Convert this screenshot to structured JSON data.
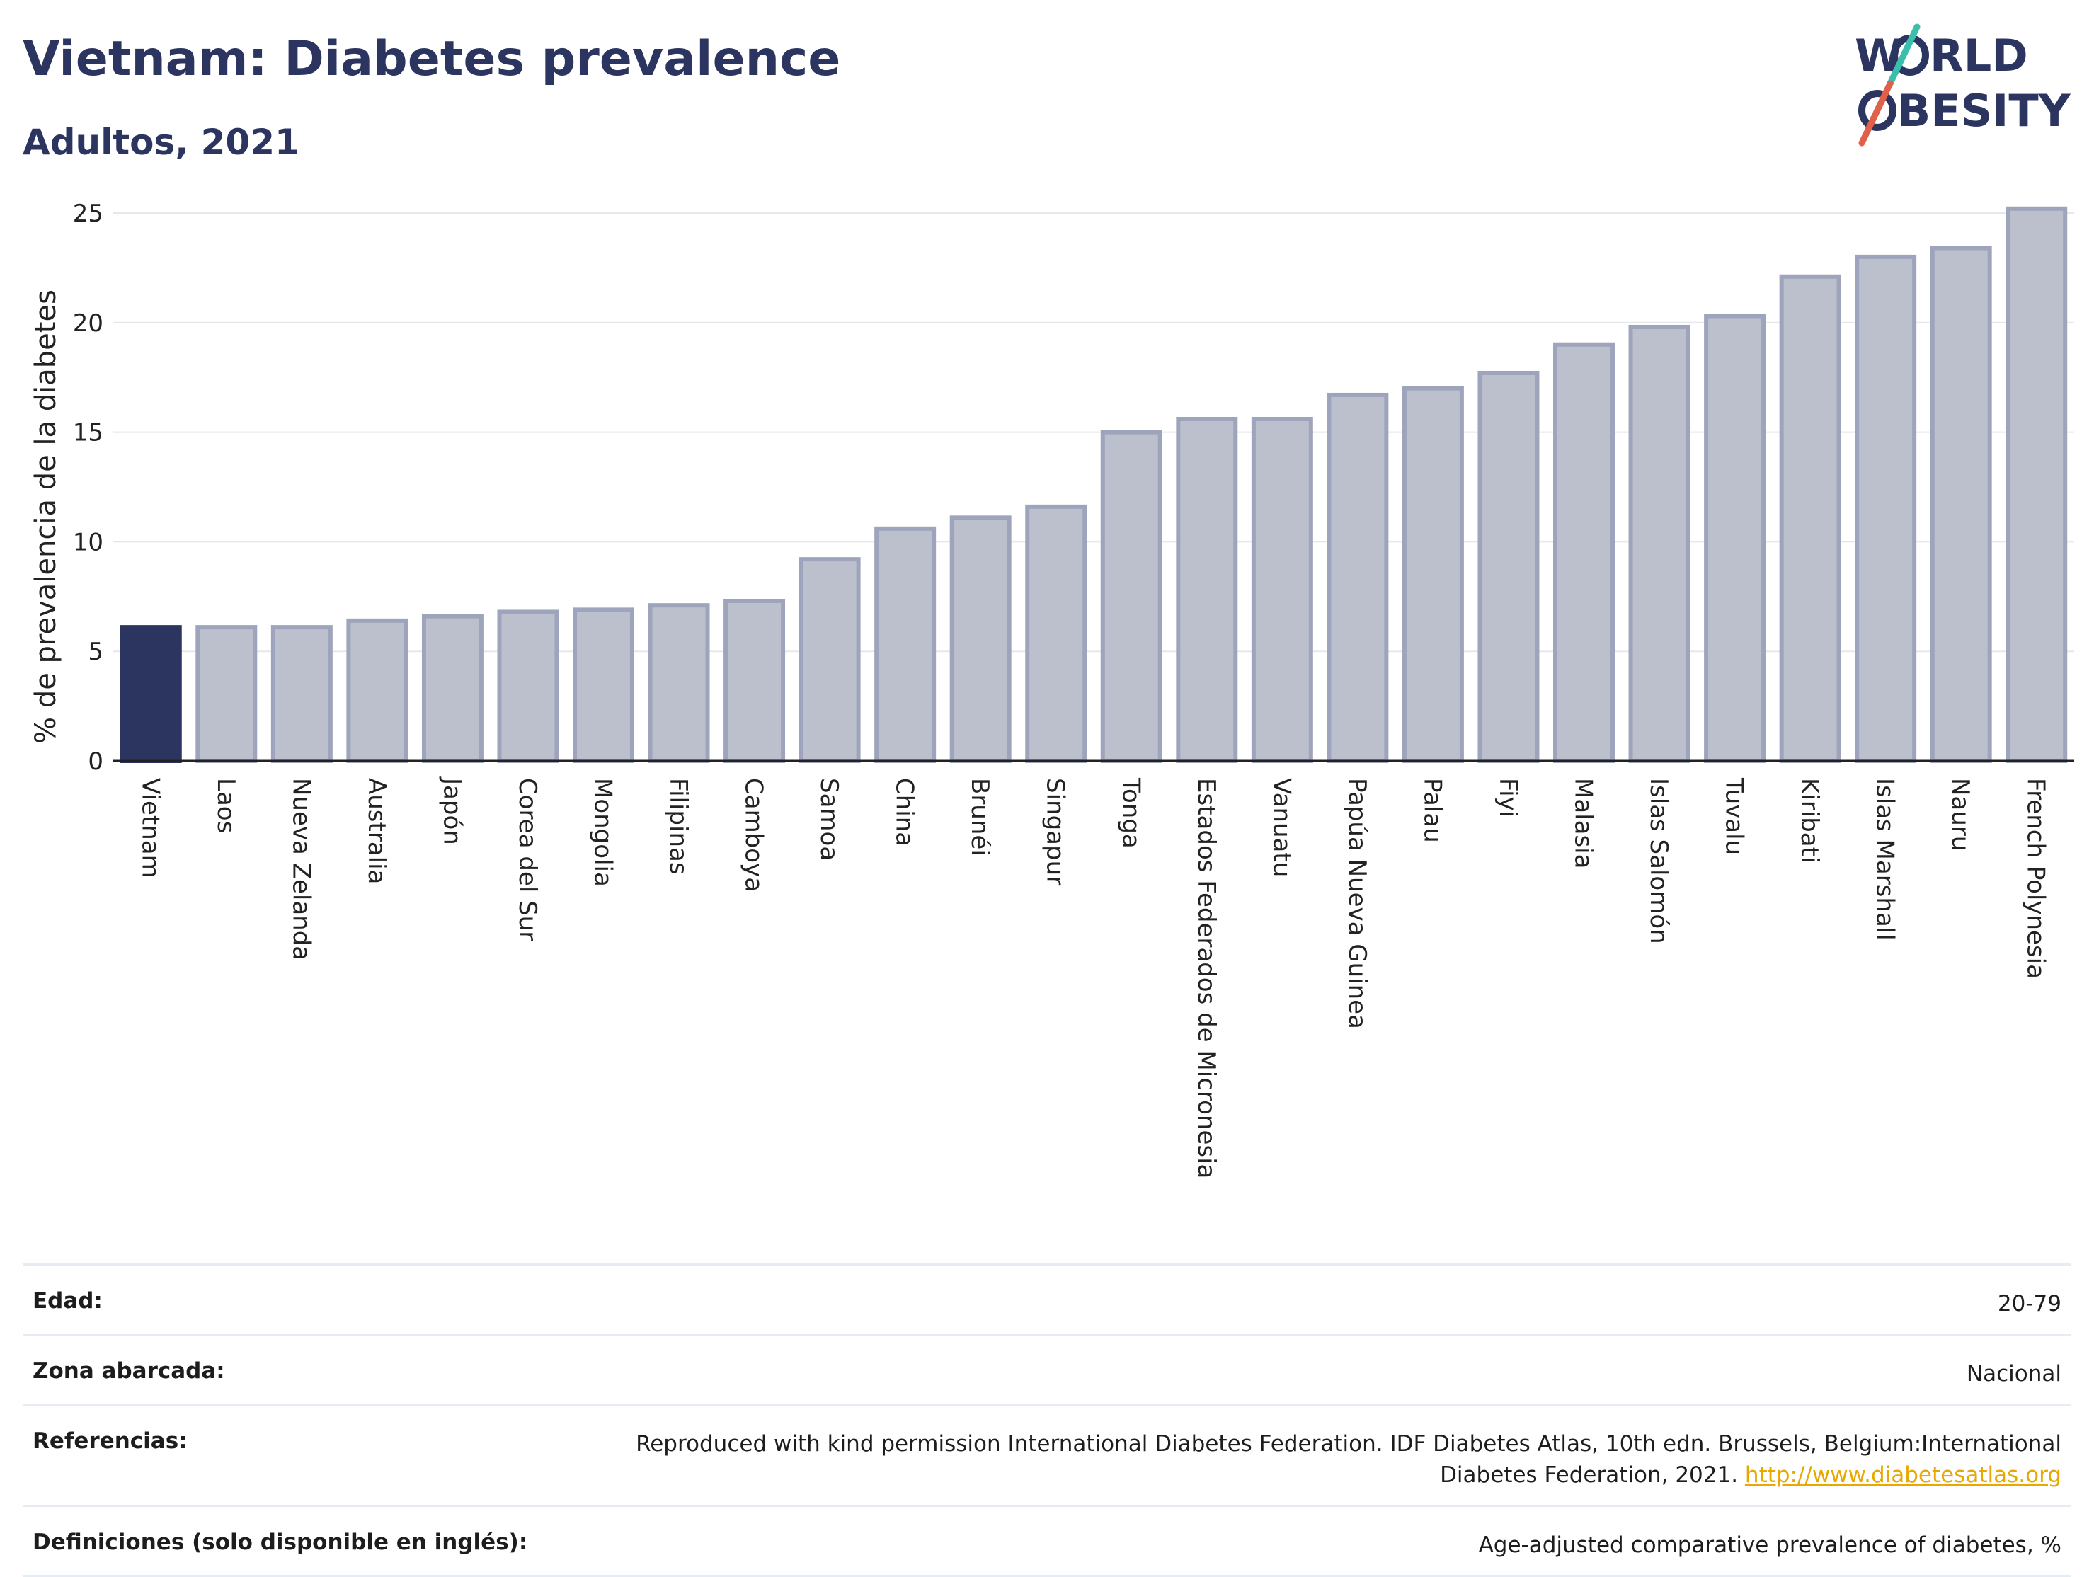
{
  "header": {
    "title": "Vietnam: Diabetes prevalence",
    "subtitle": "Adultos, 2021"
  },
  "logo": {
    "line1_a": "W",
    "line1_b": "RLD",
    "line2_b": "BESITY",
    "slash_color_top": "#3bbfad",
    "slash_color_bottom": "#e0604a"
  },
  "chart_data": {
    "type": "bar",
    "ylabel": "% de prevalencia de la diabetes",
    "ylim": [
      0,
      26
    ],
    "yticks": [
      0,
      5,
      10,
      15,
      20,
      25
    ],
    "grid": true,
    "highlight": "Vietnam",
    "highlight_color": "#2b3560",
    "bar_color": "#bcc0cd",
    "bar_edge_color": "#9ea4bb",
    "categories": [
      "Vietnam",
      "Laos",
      "Nueva Zelanda",
      "Australia",
      "Japón",
      "Corea del Sur",
      "Mongolia",
      "Filipinas",
      "Camboya",
      "Samoa",
      "China",
      "Brunéi",
      "Singapur",
      "Tonga",
      "Estados Federados de Micronesia",
      "Vanuatu",
      "Papúa Nueva Guinea",
      "Palau",
      "Fiyi",
      "Malasia",
      "Islas Salomón",
      "Tuvalu",
      "Kiribati",
      "Islas Marshall",
      "Nauru",
      "French Polynesia"
    ],
    "values": [
      6.1,
      6.1,
      6.1,
      6.4,
      6.6,
      6.8,
      6.9,
      7.1,
      7.3,
      9.2,
      10.6,
      11.1,
      11.6,
      15.0,
      15.6,
      15.6,
      16.7,
      17.0,
      17.7,
      19.0,
      19.8,
      20.3,
      22.1,
      23.0,
      23.4,
      25.2
    ]
  },
  "info": [
    {
      "label": "Edad:",
      "value": "20-79"
    },
    {
      "label": "Zona abarcada:",
      "value": "Nacional"
    },
    {
      "label": "Referencias:",
      "value": "Reproduced with kind permission International Diabetes Federation.  IDF Diabetes Atlas, 10th edn. Brussels, Belgium:International Diabetes Federation, 2021.",
      "link": "http://www.diabetesatlas.org"
    },
    {
      "label": "Definiciones (solo disponible en inglés):",
      "value": "Age-adjusted comparative prevalence of diabetes, %"
    }
  ]
}
